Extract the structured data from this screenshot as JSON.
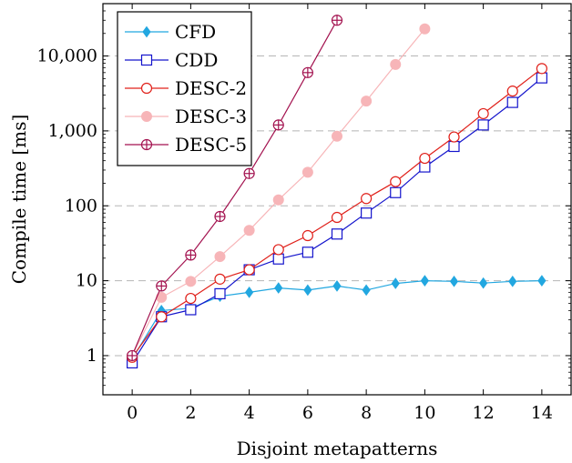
{
  "chart_data": {
    "type": "line",
    "xlabel": "Disjoint metapatterns",
    "ylabel": "Compile time [ms]",
    "xlim": [
      -1,
      15
    ],
    "ylim": [
      0.3,
      50000
    ],
    "yscale": "log",
    "xticks": [
      0,
      2,
      4,
      6,
      8,
      10,
      12,
      14
    ],
    "yticks": [
      1,
      10,
      100,
      1000,
      10000
    ],
    "ytick_labels": [
      "1",
      "10",
      "100",
      "1,000",
      "10,000"
    ],
    "grid": "horizontal-dashed",
    "legend_position": "top-left",
    "series": [
      {
        "name": "CFD",
        "color": "#22a7e0",
        "marker": "diamond-filled",
        "x": [
          0,
          1,
          2,
          3,
          4,
          5,
          6,
          7,
          8,
          9,
          10,
          11,
          12,
          13,
          14
        ],
        "y": [
          0.9,
          4.0,
          4.3,
          6.2,
          7.0,
          8.0,
          7.5,
          8.5,
          7.5,
          9.2,
          10.0,
          9.8,
          9.3,
          9.8,
          10.0
        ]
      },
      {
        "name": "CDD",
        "color": "#1414cc",
        "marker": "square-open",
        "x": [
          0,
          1,
          2,
          3,
          4,
          5,
          6,
          7,
          8,
          9,
          10,
          11,
          12,
          13,
          14
        ],
        "y": [
          0.8,
          3.3,
          4.1,
          6.7,
          14,
          19.5,
          24,
          42,
          80,
          150,
          330,
          620,
          1200,
          2400,
          5100
        ]
      },
      {
        "name": "DESC-2",
        "color": "#e0201a",
        "marker": "circle-open",
        "x": [
          0,
          1,
          2,
          3,
          4,
          5,
          6,
          7,
          8,
          9,
          10,
          11,
          12,
          13,
          14
        ],
        "y": [
          0.95,
          3.3,
          5.8,
          10.5,
          14,
          26,
          40,
          70,
          125,
          210,
          430,
          830,
          1700,
          3400,
          6800
        ]
      },
      {
        "name": "DESC-3",
        "color": "#f7b5b8",
        "marker": "circle-filled",
        "x": [
          0,
          1,
          2,
          3,
          4,
          5,
          6,
          7,
          8,
          9,
          10
        ],
        "y": [
          1.0,
          6.0,
          9.8,
          21,
          47,
          120,
          280,
          850,
          2500,
          7700,
          23000
        ]
      },
      {
        "name": "DESC-5",
        "color": "#a3124f",
        "marker": "circle-plus",
        "x": [
          0,
          1,
          2,
          3,
          4,
          5,
          6,
          7
        ],
        "y": [
          1.0,
          8.5,
          22,
          72,
          270,
          1200,
          6000,
          30000
        ]
      }
    ]
  }
}
